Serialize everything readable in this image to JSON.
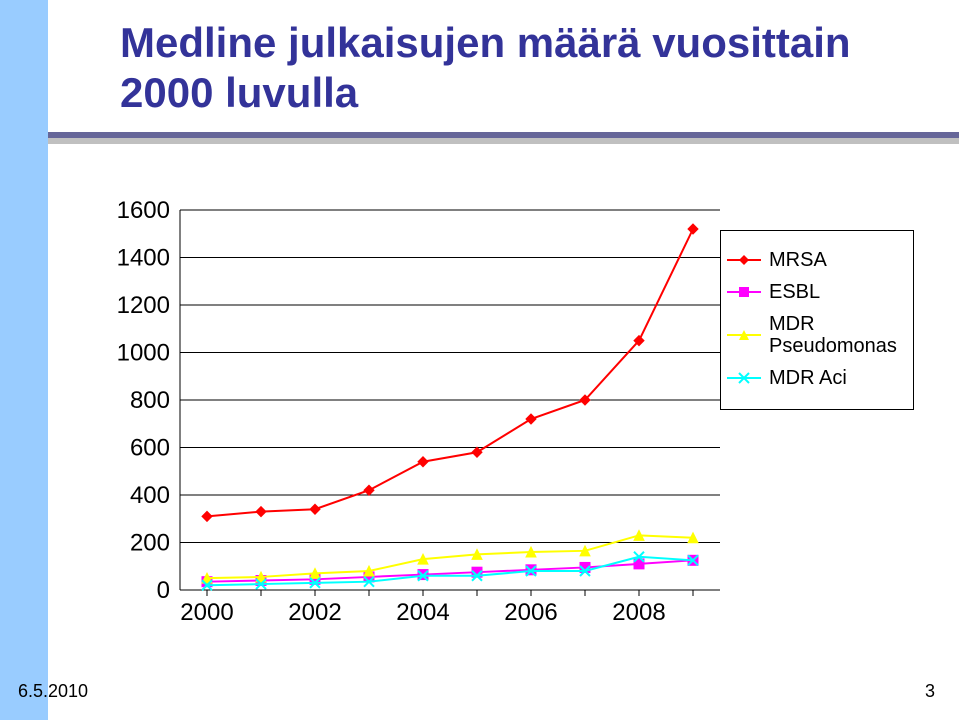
{
  "slide": {
    "title_line1": "Medline julkaisujen määrä vuosittain",
    "title_line2": "2000 luvulla",
    "footer_date": "6.5.2010",
    "footer_page": "3",
    "title_color": "#333399",
    "stripe_color": "#99ccff",
    "rule_dark": "#666699",
    "rule_light": "#c0c0c0"
  },
  "chart": {
    "type": "line",
    "background": "#ffffff",
    "font_family": "Arial",
    "label_fontsize": 24,
    "label_color": "#000000",
    "gridline_color": "#000000",
    "gridline_width": 1,
    "axis_color": "#000000",
    "axis_width": 1,
    "x_ticks": [
      2000,
      2002,
      2004,
      2006,
      2008
    ],
    "x_min": 1999.5,
    "x_max": 2009.5,
    "y_ticks": [
      0,
      200,
      400,
      600,
      800,
      1000,
      1200,
      1400,
      1600
    ],
    "y_min": 0,
    "y_max": 1600,
    "show_horizontal_grid": true,
    "marker_size": 5,
    "series": [
      {
        "name": "MRSA",
        "color": "#ff0000",
        "marker": "diamond",
        "line_width": 2,
        "x": [
          2000,
          2001,
          2002,
          2003,
          2004,
          2005,
          2006,
          2007,
          2008,
          2009
        ],
        "y": [
          310,
          330,
          340,
          420,
          540,
          580,
          720,
          800,
          1050,
          1520
        ]
      },
      {
        "name": "ESBL",
        "color": "#ff00ff",
        "marker": "square",
        "line_width": 2,
        "x": [
          2000,
          2001,
          2002,
          2003,
          2004,
          2005,
          2006,
          2007,
          2008,
          2009
        ],
        "y": [
          35,
          40,
          45,
          55,
          65,
          75,
          85,
          95,
          110,
          125
        ]
      },
      {
        "name": "MDR Pseudomonas",
        "color": "#ffff00",
        "marker": "triangle",
        "line_width": 2,
        "x": [
          2000,
          2001,
          2002,
          2003,
          2004,
          2005,
          2006,
          2007,
          2008,
          2009
        ],
        "y": [
          50,
          55,
          70,
          80,
          130,
          150,
          160,
          165,
          230,
          220
        ]
      },
      {
        "name": "MDR Aci",
        "color": "#00ffff",
        "marker": "x",
        "line_width": 2,
        "x": [
          2000,
          2001,
          2002,
          2003,
          2004,
          2005,
          2006,
          2007,
          2008,
          2009
        ],
        "y": [
          20,
          25,
          30,
          35,
          60,
          60,
          80,
          80,
          140,
          125
        ]
      }
    ],
    "legend": {
      "border": "#000000",
      "item_fontsize": 20,
      "items": [
        "MRSA",
        "ESBL",
        "MDR Pseudomonas",
        "MDR Aci"
      ]
    }
  }
}
